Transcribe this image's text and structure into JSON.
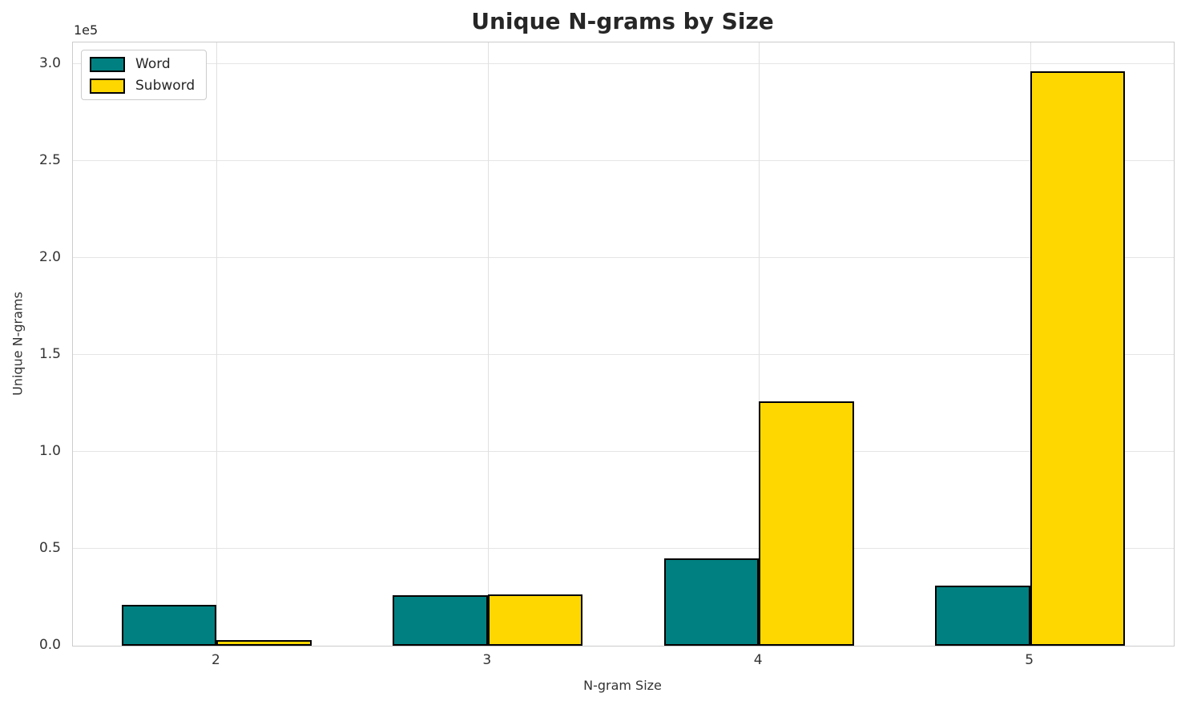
{
  "title": "Unique N-grams by Size",
  "axis_offset_label": "1e5",
  "legend": {
    "items": [
      {
        "label": "Word",
        "color": "#008080"
      },
      {
        "label": "Subword",
        "color": "#FFD700"
      }
    ]
  },
  "chart_data": {
    "type": "bar",
    "title": "Unique N-grams by Size",
    "xlabel": "N-gram Size",
    "ylabel": "Unique N-grams",
    "categories": [
      "2",
      "3",
      "4",
      "5"
    ],
    "series": [
      {
        "name": "Word",
        "color": "#008080",
        "values": [
          21000,
          26000,
          45000,
          31000
        ]
      },
      {
        "name": "Subword",
        "color": "#FFD700",
        "values": [
          3000,
          26500,
          126000,
          296000
        ]
      }
    ],
    "bar_width": 0.35,
    "bar_edge_color": "#000000",
    "xlim": [
      -0.53,
      3.53
    ],
    "ylim": [
      0,
      311000
    ],
    "yticks": [
      0,
      50000,
      100000,
      150000,
      200000,
      250000,
      300000
    ],
    "ytick_labels": [
      "0.0",
      "0.5",
      "1.0",
      "1.5",
      "2.0",
      "2.5",
      "3.0"
    ],
    "y_scale_label": "1e5",
    "grid": true,
    "legend_position": "upper left"
  }
}
